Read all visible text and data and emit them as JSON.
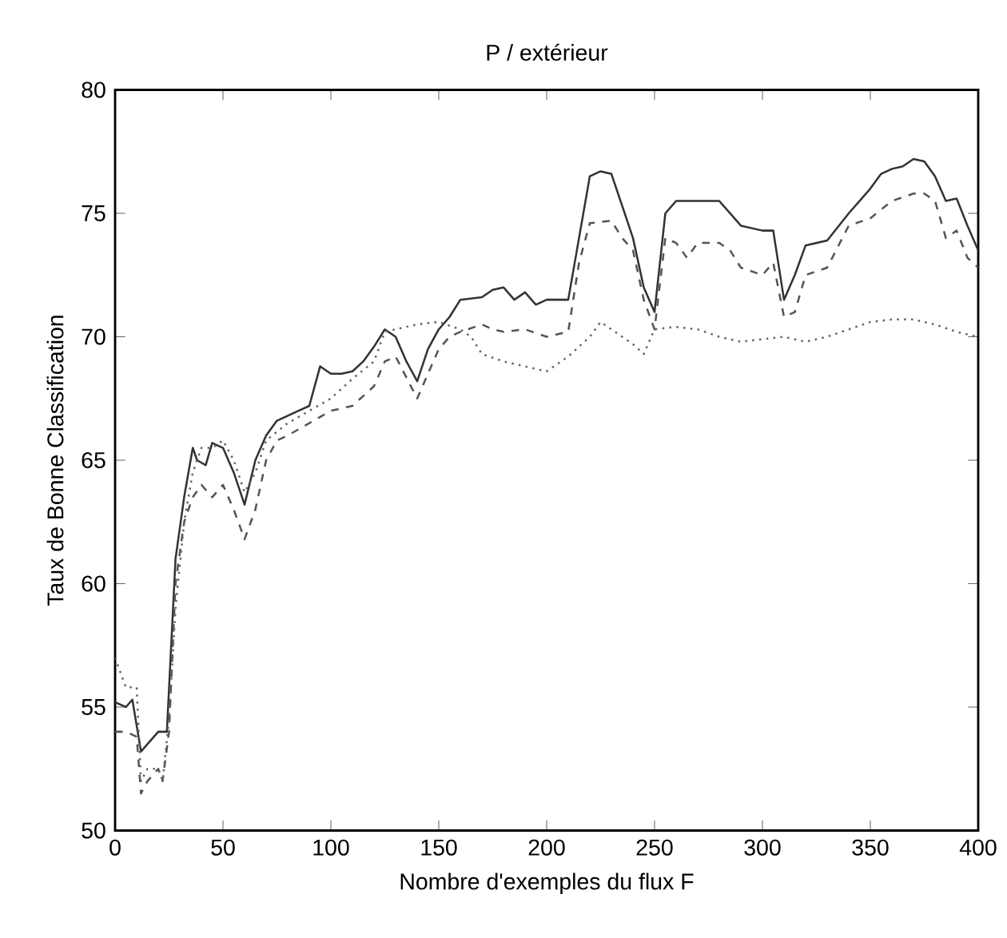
{
  "chart_data": {
    "type": "line",
    "title": "P / extérieur",
    "xlabel": "Nombre d'exemples du flux F",
    "ylabel": "Taux de Bonne Classification",
    "xlim": [
      0,
      400
    ],
    "ylim": [
      50,
      80
    ],
    "xticks": [
      0,
      50,
      100,
      150,
      200,
      250,
      300,
      350,
      400
    ],
    "yticks": [
      50,
      55,
      60,
      65,
      70,
      75,
      80
    ],
    "series": [
      {
        "color": "#333333",
        "line_style": "solid",
        "x": [
          0,
          5,
          8,
          12,
          15,
          20,
          24,
          28,
          32,
          36,
          38,
          42,
          45,
          50,
          55,
          60,
          65,
          70,
          75,
          80,
          85,
          90,
          95,
          100,
          105,
          110,
          115,
          120,
          125,
          130,
          135,
          140,
          145,
          150,
          155,
          160,
          170,
          175,
          180,
          185,
          190,
          195,
          200,
          210,
          215,
          220,
          225,
          230,
          235,
          240,
          245,
          250,
          255,
          260,
          270,
          280,
          290,
          300,
          305,
          310,
          315,
          320,
          330,
          340,
          350,
          355,
          360,
          365,
          370,
          375,
          380,
          385,
          390,
          395,
          400
        ],
        "values": [
          55.2,
          55,
          55.3,
          53.2,
          53.5,
          54,
          54,
          61,
          63.5,
          65.5,
          65,
          64.8,
          65.7,
          65.5,
          64.5,
          63.2,
          65,
          66,
          66.6,
          66.8,
          67,
          67.2,
          68.8,
          68.5,
          68.5,
          68.6,
          69,
          69.6,
          70.3,
          70,
          69,
          68.2,
          69.5,
          70.3,
          70.8,
          71.5,
          71.6,
          71.9,
          72,
          71.5,
          71.8,
          71.3,
          71.5,
          71.5,
          74,
          76.5,
          76.7,
          76.6,
          75.3,
          74,
          72,
          71,
          75,
          75.5,
          75.5,
          75.5,
          74.5,
          74.3,
          74.3,
          71.5,
          72.5,
          73.7,
          73.9,
          75,
          76,
          76.6,
          76.8,
          76.9,
          77.2,
          77.1,
          76.5,
          75.5,
          75.6,
          74.5,
          73.5
        ]
      },
      {
        "color": "#555555",
        "line_style": "dashed",
        "x": [
          0,
          5,
          10,
          12,
          15,
          20,
          22,
          25,
          28,
          32,
          36,
          40,
          45,
          50,
          55,
          60,
          65,
          70,
          75,
          80,
          90,
          100,
          110,
          120,
          125,
          130,
          140,
          145,
          150,
          155,
          160,
          170,
          175,
          180,
          190,
          200,
          210,
          215,
          220,
          230,
          235,
          240,
          245,
          250,
          255,
          260,
          265,
          270,
          280,
          285,
          290,
          300,
          305,
          310,
          315,
          320,
          330,
          340,
          350,
          360,
          370,
          375,
          380,
          385,
          390,
          395,
          400
        ],
        "values": [
          54,
          54,
          53.8,
          51.5,
          52,
          52.5,
          52,
          54,
          60,
          62.5,
          63.5,
          64,
          63.5,
          64,
          63,
          61.8,
          63,
          65,
          65.8,
          66,
          66.5,
          67,
          67.2,
          68,
          69,
          69.2,
          67.5,
          68.5,
          69.5,
          70,
          70.2,
          70.5,
          70.3,
          70.2,
          70.3,
          70,
          70.2,
          73,
          74.6,
          74.7,
          74,
          73.5,
          71.5,
          70.3,
          74,
          73.8,
          73.2,
          73.8,
          73.8,
          73.5,
          72.8,
          72.5,
          73,
          70.8,
          71,
          72.5,
          72.8,
          74.5,
          74.8,
          75.5,
          75.8,
          75.8,
          75.5,
          74,
          74.3,
          73.2,
          72.8
        ]
      },
      {
        "color": "#666666",
        "line_style": "dotted",
        "x": [
          0,
          5,
          10,
          12,
          15,
          20,
          22,
          25,
          28,
          32,
          36,
          40,
          45,
          50,
          55,
          60,
          65,
          70,
          80,
          90,
          100,
          110,
          120,
          125,
          130,
          140,
          150,
          160,
          165,
          170,
          180,
          190,
          200,
          210,
          220,
          225,
          230,
          240,
          245,
          250,
          260,
          270,
          280,
          290,
          300,
          310,
          320,
          330,
          340,
          350,
          360,
          370,
          380,
          390,
          400
        ],
        "values": [
          57,
          55.8,
          55.8,
          52,
          52.5,
          52.5,
          52,
          54.5,
          59,
          62.5,
          64.5,
          65.5,
          65.5,
          65.8,
          65,
          63.7,
          64.5,
          65.8,
          66.5,
          67,
          67.5,
          68.3,
          69,
          70.2,
          70.3,
          70.5,
          70.6,
          70.3,
          70,
          69.3,
          69,
          68.8,
          68.6,
          69.2,
          70,
          70.6,
          70.3,
          69.7,
          69.3,
          70.3,
          70.4,
          70.3,
          70,
          69.8,
          69.9,
          70,
          69.8,
          70,
          70.3,
          70.6,
          70.7,
          70.7,
          70.5,
          70.2,
          70
        ]
      }
    ]
  }
}
